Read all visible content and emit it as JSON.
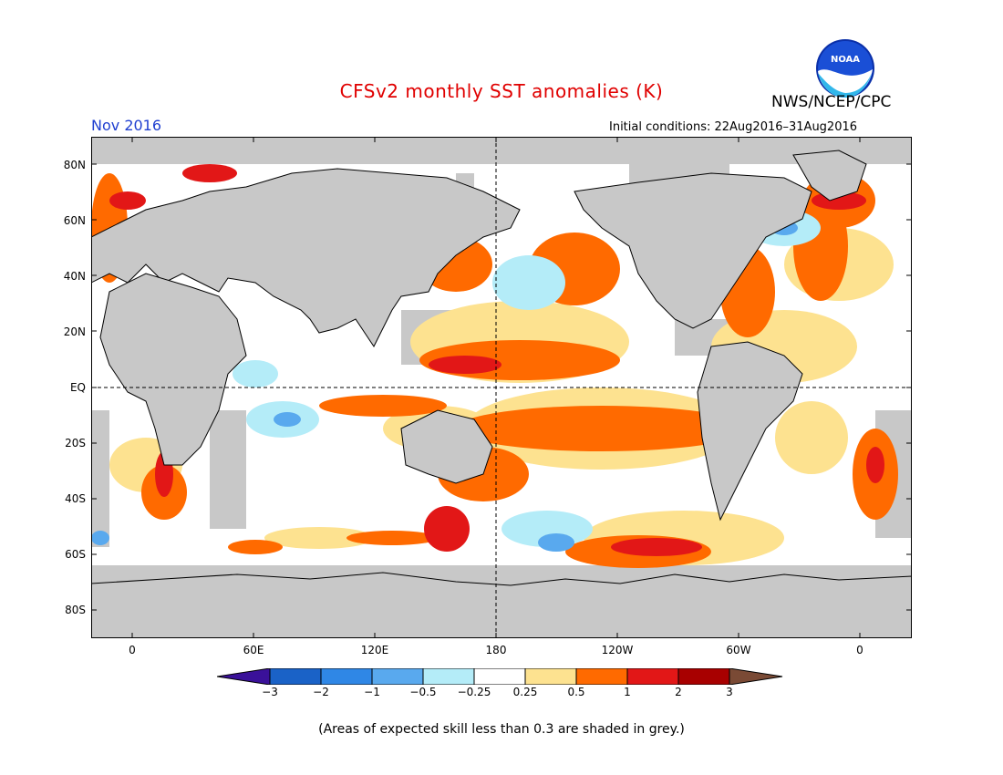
{
  "title": "CFSv2 monthly SST anomalies (K)",
  "org": "NWS/NCEP/CPC",
  "logo_text": "NOAA",
  "month_label": "Nov 2016",
  "initial_conditions": "Initial conditions: 22Aug2016–31Aug2016",
  "lat_labels": [
    "80N",
    "60N",
    "40N",
    "20N",
    "EQ",
    "20S",
    "40S",
    "60S",
    "80S"
  ],
  "lon_labels": [
    "0",
    "60E",
    "120E",
    "180",
    "120W",
    "60W",
    "0"
  ],
  "colorbar": {
    "labels": [
      "−3",
      "−2",
      "−1",
      "−0.5",
      "−0.25",
      "0.25",
      "0.5",
      "1",
      "2",
      "3"
    ],
    "colors": {
      "below_min": "#3a1199",
      "bins": [
        "#1a62c7",
        "#2f87e6",
        "#59a9ee",
        "#b4ecf8",
        "#ffffff",
        "#fde290",
        "#ff6a00",
        "#e21717",
        "#a80000"
      ],
      "above_max": "#7a4a35"
    }
  },
  "note": "(Areas of expected skill less than 0.3 are shaded in grey.)",
  "colors": {
    "land": "#c8c8c8",
    "ocean_default": "#ffffff",
    "coast": "#000000"
  }
}
